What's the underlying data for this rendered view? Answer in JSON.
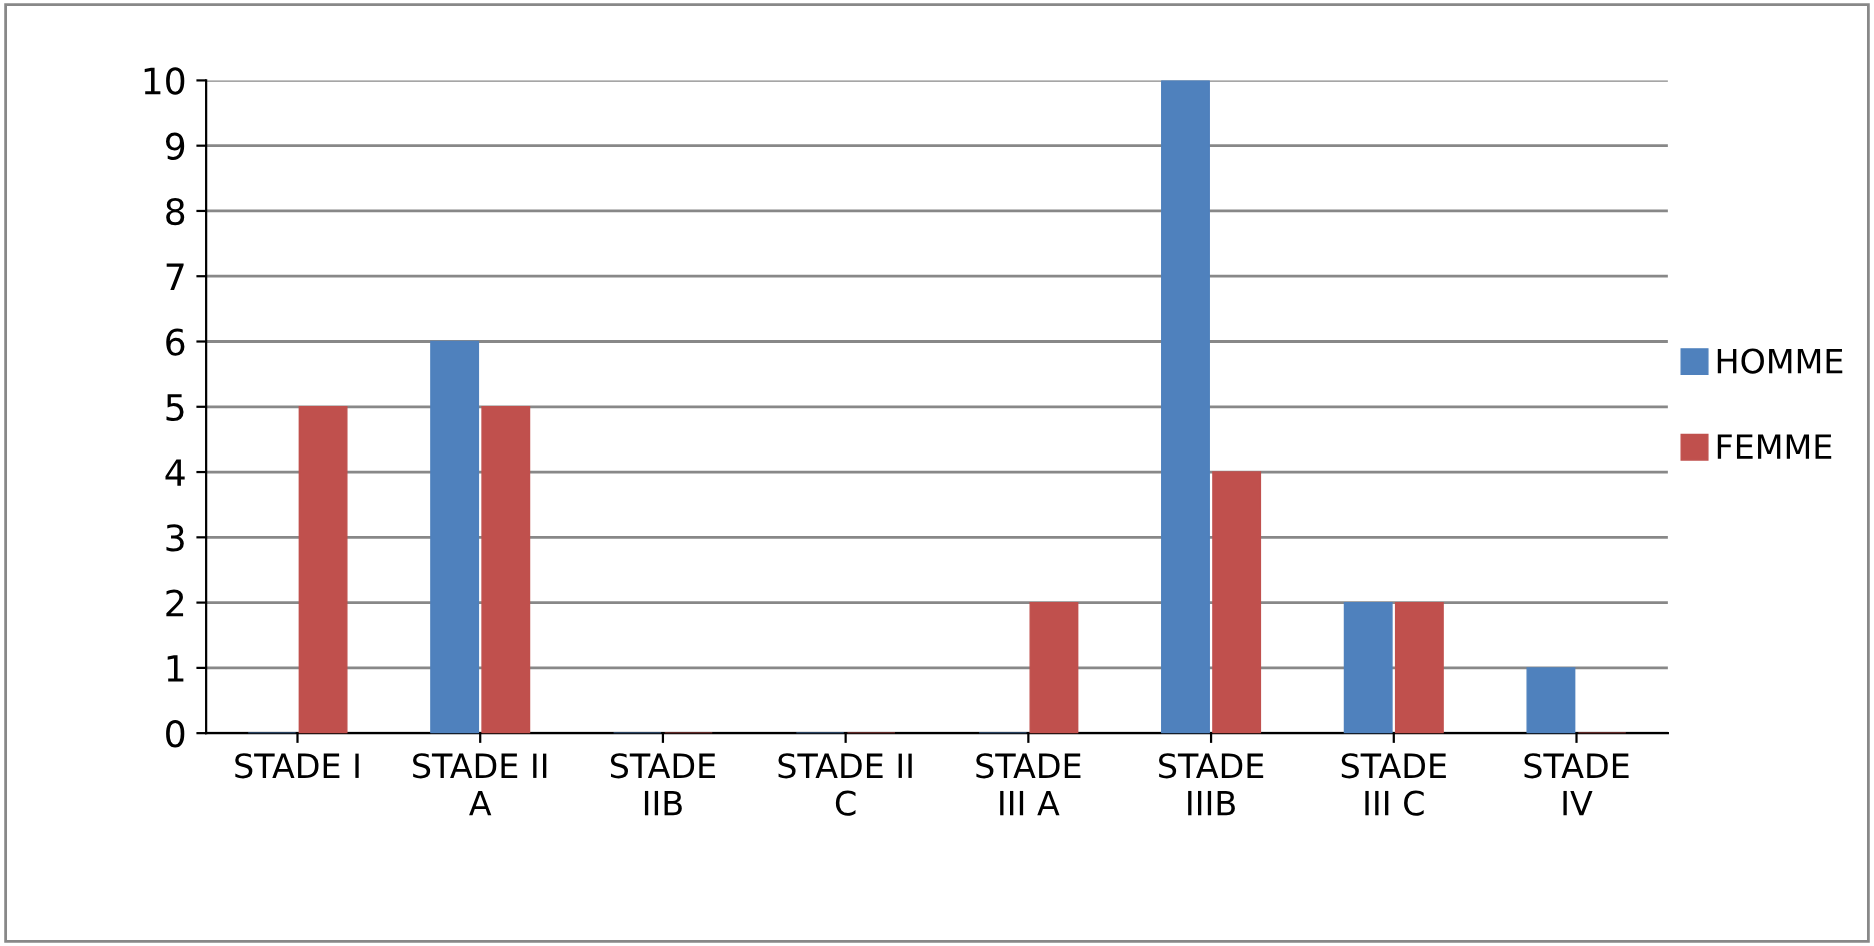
{
  "chart_data": {
    "type": "bar",
    "categories": [
      "STADE I",
      "STADE II\nA",
      "STADE\nIIB",
      "STADE II\nC",
      "STADE\nIII A",
      "STADE\nIIIB",
      "STADE\nIII C",
      "STADE\nIV"
    ],
    "series": [
      {
        "name": "HOMME",
        "color": "#4f81bd",
        "values": [
          0,
          6,
          0,
          0,
          0,
          10,
          2,
          1
        ]
      },
      {
        "name": "FEMME",
        "color": "#c0504d",
        "values": [
          5,
          5,
          0,
          0,
          2,
          4,
          2,
          0
        ]
      }
    ],
    "ylim": [
      0,
      10
    ],
    "yticks": [
      0,
      1,
      2,
      3,
      4,
      5,
      6,
      7,
      8,
      9,
      10
    ],
    "grid": "y",
    "legend": "right"
  }
}
